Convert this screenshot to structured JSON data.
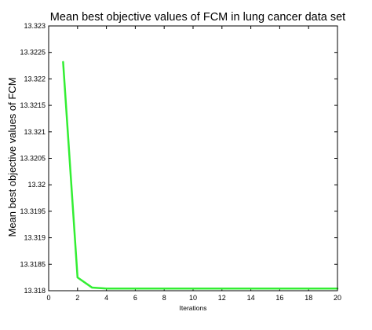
{
  "chart_data": {
    "type": "line",
    "title": "Mean best objective values of FCM in lung cancer data set",
    "xlabel": "Iterations",
    "ylabel": "Mean best objective values of FCM",
    "xlim": [
      0,
      20
    ],
    "ylim": [
      13.318,
      13.323
    ],
    "x_ticks": [
      "0",
      "2",
      "4",
      "6",
      "8",
      "10",
      "12",
      "14",
      "16",
      "18",
      "20"
    ],
    "y_ticks": [
      "13.318",
      "13.3185",
      "13.319",
      "13.3195",
      "13.32",
      "13.3205",
      "13.321",
      "13.3215",
      "13.322",
      "13.3225",
      "13.323"
    ],
    "grid": false,
    "series": [
      {
        "color": "#33ee33",
        "x": [
          1,
          2,
          3,
          4,
          5,
          6,
          7,
          8,
          9,
          10,
          11,
          12,
          13,
          14,
          15,
          16,
          17,
          18,
          19,
          20
        ],
        "y": [
          13.32232,
          13.31825,
          13.31806,
          13.31804,
          13.31804,
          13.31804,
          13.31804,
          13.31804,
          13.31804,
          13.31804,
          13.31804,
          13.31804,
          13.31804,
          13.31804,
          13.31804,
          13.31804,
          13.31804,
          13.31804,
          13.31804,
          13.31804
        ]
      }
    ]
  }
}
